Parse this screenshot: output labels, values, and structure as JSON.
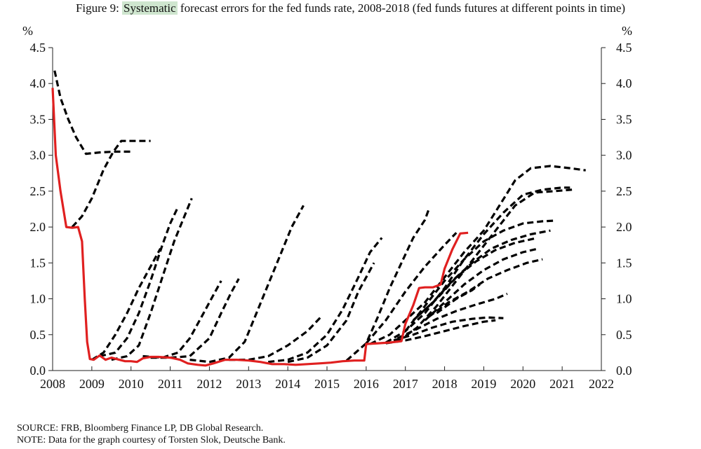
{
  "title": {
    "prefix": "Figure 9:  ",
    "highlight": "Systematic",
    "rest": " forecast errors for the fed funds rate, 2008-2018 (fed funds futures at different points in time)"
  },
  "notes": {
    "source": "SOURCE: FRB, Bloomberg Finance LP, DB Global Research.",
    "note": "NOTE: Data for the graph courtesy of Torsten Slok, Deutsche Bank."
  },
  "chart_data": {
    "type": "line",
    "title": "Systematic forecast errors for the fed funds rate, 2008-2018 (fed funds futures at different points in time)",
    "xlabel": "",
    "ylabel_left": "%",
    "ylabel_right": "%",
    "xlim": [
      2008,
      2022
    ],
    "ylim": [
      0,
      4.5
    ],
    "x_ticks": [
      2008,
      2009,
      2010,
      2011,
      2012,
      2013,
      2014,
      2015,
      2016,
      2017,
      2018,
      2019,
      2020,
      2021,
      2022
    ],
    "y_ticks": [
      "0.0",
      "0.5",
      "1.0",
      "1.5",
      "2.0",
      "2.5",
      "3.0",
      "3.5",
      "4.0",
      "4.5"
    ],
    "grid": false,
    "legend": "none",
    "colors": {
      "actual": "#e02020",
      "forecast": "#000000"
    },
    "actual": {
      "style": "solid-red",
      "points": [
        [
          2008.0,
          3.94
        ],
        [
          2008.08,
          3.0
        ],
        [
          2008.2,
          2.5
        ],
        [
          2008.35,
          2.0
        ],
        [
          2008.5,
          1.99
        ],
        [
          2008.65,
          2.0
        ],
        [
          2008.75,
          1.8
        ],
        [
          2008.82,
          1.0
        ],
        [
          2008.88,
          0.4
        ],
        [
          2008.95,
          0.16
        ],
        [
          2009.05,
          0.15
        ],
        [
          2009.2,
          0.21
        ],
        [
          2009.35,
          0.15
        ],
        [
          2009.5,
          0.18
        ],
        [
          2009.7,
          0.15
        ],
        [
          2009.85,
          0.13
        ],
        [
          2010.0,
          0.13
        ],
        [
          2010.15,
          0.12
        ],
        [
          2010.3,
          0.17
        ],
        [
          2010.5,
          0.19
        ],
        [
          2010.7,
          0.19
        ],
        [
          2011.0,
          0.18
        ],
        [
          2011.25,
          0.15
        ],
        [
          2011.45,
          0.1
        ],
        [
          2011.7,
          0.08
        ],
        [
          2011.9,
          0.07
        ],
        [
          2012.1,
          0.1
        ],
        [
          2012.4,
          0.15
        ],
        [
          2012.7,
          0.15
        ],
        [
          2013.0,
          0.14
        ],
        [
          2013.3,
          0.12
        ],
        [
          2013.6,
          0.09
        ],
        [
          2013.9,
          0.09
        ],
        [
          2014.2,
          0.08
        ],
        [
          2014.5,
          0.09
        ],
        [
          2014.8,
          0.1
        ],
        [
          2015.1,
          0.11
        ],
        [
          2015.4,
          0.13
        ],
        [
          2015.7,
          0.14
        ],
        [
          2015.95,
          0.14
        ],
        [
          2016.0,
          0.37
        ],
        [
          2016.3,
          0.38
        ],
        [
          2016.6,
          0.39
        ],
        [
          2016.9,
          0.41
        ],
        [
          2017.0,
          0.65
        ],
        [
          2017.2,
          0.91
        ],
        [
          2017.35,
          1.15
        ],
        [
          2017.5,
          1.16
        ],
        [
          2017.7,
          1.16
        ],
        [
          2017.9,
          1.2
        ],
        [
          2018.0,
          1.42
        ],
        [
          2018.2,
          1.69
        ],
        [
          2018.4,
          1.91
        ],
        [
          2018.6,
          1.92
        ]
      ]
    },
    "forecasts": [
      {
        "style": "dashed",
        "points": [
          [
            2008.05,
            4.18
          ],
          [
            2008.2,
            3.8
          ],
          [
            2008.4,
            3.5
          ],
          [
            2008.6,
            3.25
          ],
          [
            2008.85,
            3.02
          ],
          [
            2009.2,
            3.04
          ],
          [
            2009.6,
            3.05
          ],
          [
            2010.05,
            3.05
          ]
        ]
      },
      {
        "style": "dashed",
        "points": [
          [
            2008.5,
            2.0
          ],
          [
            2008.75,
            2.15
          ],
          [
            2009.0,
            2.4
          ],
          [
            2009.3,
            2.8
          ],
          [
            2009.55,
            3.05
          ],
          [
            2009.75,
            3.2
          ],
          [
            2010.2,
            3.2
          ],
          [
            2010.5,
            3.2
          ]
        ]
      },
      {
        "style": "dashed",
        "points": [
          [
            2009.0,
            0.15
          ],
          [
            2009.3,
            0.25
          ],
          [
            2009.6,
            0.5
          ],
          [
            2009.9,
            0.8
          ],
          [
            2010.2,
            1.15
          ],
          [
            2010.5,
            1.45
          ],
          [
            2010.75,
            1.7
          ]
        ]
      },
      {
        "style": "dashed",
        "points": [
          [
            2009.2,
            0.2
          ],
          [
            2009.6,
            0.25
          ],
          [
            2009.9,
            0.45
          ],
          [
            2010.2,
            0.8
          ],
          [
            2010.5,
            1.25
          ],
          [
            2010.8,
            1.75
          ],
          [
            2011.0,
            2.05
          ],
          [
            2011.2,
            2.28
          ]
        ]
      },
      {
        "style": "dashed",
        "points": [
          [
            2009.5,
            0.15
          ],
          [
            2009.9,
            0.2
          ],
          [
            2010.2,
            0.35
          ],
          [
            2010.5,
            0.8
          ],
          [
            2010.8,
            1.3
          ],
          [
            2011.1,
            1.8
          ],
          [
            2011.4,
            2.2
          ],
          [
            2011.55,
            2.4
          ]
        ]
      },
      {
        "style": "dashed",
        "points": [
          [
            2010.3,
            0.2
          ],
          [
            2010.8,
            0.18
          ],
          [
            2011.2,
            0.25
          ],
          [
            2011.5,
            0.45
          ],
          [
            2011.8,
            0.75
          ],
          [
            2012.1,
            1.05
          ],
          [
            2012.3,
            1.25
          ]
        ]
      },
      {
        "style": "dashed",
        "points": [
          [
            2010.5,
            0.18
          ],
          [
            2011.0,
            0.18
          ],
          [
            2011.5,
            0.2
          ],
          [
            2012.0,
            0.45
          ],
          [
            2012.3,
            0.8
          ],
          [
            2012.55,
            1.08
          ],
          [
            2012.75,
            1.28
          ]
        ]
      },
      {
        "style": "dashed",
        "points": [
          [
            2011.5,
            0.15
          ],
          [
            2012.0,
            0.12
          ],
          [
            2012.5,
            0.18
          ],
          [
            2012.9,
            0.4
          ],
          [
            2013.2,
            0.8
          ],
          [
            2013.5,
            1.2
          ],
          [
            2013.8,
            1.6
          ],
          [
            2014.1,
            2.0
          ],
          [
            2014.4,
            2.3
          ]
        ]
      },
      {
        "style": "dashed",
        "points": [
          [
            2012.5,
            0.15
          ],
          [
            2013.0,
            0.15
          ],
          [
            2013.5,
            0.2
          ],
          [
            2014.0,
            0.35
          ],
          [
            2014.5,
            0.55
          ],
          [
            2014.85,
            0.75
          ]
        ]
      },
      {
        "style": "dashed",
        "points": [
          [
            2013.5,
            0.12
          ],
          [
            2014.0,
            0.15
          ],
          [
            2014.5,
            0.25
          ],
          [
            2015.0,
            0.5
          ],
          [
            2015.4,
            0.85
          ],
          [
            2015.8,
            1.3
          ],
          [
            2016.1,
            1.65
          ],
          [
            2016.4,
            1.85
          ]
        ]
      },
      {
        "style": "dashed",
        "points": [
          [
            2014.0,
            0.12
          ],
          [
            2014.5,
            0.18
          ],
          [
            2015.0,
            0.35
          ],
          [
            2015.5,
            0.7
          ],
          [
            2015.8,
            1.1
          ],
          [
            2016.0,
            1.3
          ],
          [
            2016.2,
            1.5
          ]
        ]
      },
      {
        "style": "dashed",
        "points": [
          [
            2015.5,
            0.14
          ],
          [
            2016.0,
            0.38
          ],
          [
            2016.3,
            0.75
          ],
          [
            2016.6,
            1.15
          ],
          [
            2016.9,
            1.5
          ],
          [
            2017.2,
            1.85
          ],
          [
            2017.5,
            2.1
          ],
          [
            2017.6,
            2.25
          ]
        ]
      },
      {
        "style": "dashed",
        "points": [
          [
            2016.0,
            0.38
          ],
          [
            2016.5,
            0.7
          ],
          [
            2017.0,
            1.1
          ],
          [
            2017.5,
            1.45
          ],
          [
            2018.0,
            1.75
          ],
          [
            2018.3,
            1.92
          ]
        ]
      },
      {
        "style": "dashed",
        "points": [
          [
            2016.1,
            0.37
          ],
          [
            2016.6,
            0.5
          ],
          [
            2017.0,
            0.7
          ],
          [
            2017.5,
            0.95
          ],
          [
            2018.0,
            1.3
          ],
          [
            2018.5,
            1.65
          ],
          [
            2019.0,
            1.95
          ],
          [
            2019.4,
            2.3
          ],
          [
            2019.8,
            2.65
          ],
          [
            2020.2,
            2.82
          ],
          [
            2020.7,
            2.85
          ],
          [
            2021.2,
            2.82
          ],
          [
            2021.6,
            2.79
          ]
        ]
      },
      {
        "style": "dashed",
        "points": [
          [
            2016.5,
            0.39
          ],
          [
            2017.0,
            0.55
          ],
          [
            2017.5,
            0.8
          ],
          [
            2018.0,
            1.15
          ],
          [
            2018.5,
            1.55
          ],
          [
            2019.0,
            1.9
          ],
          [
            2019.5,
            2.2
          ],
          [
            2020.0,
            2.45
          ],
          [
            2020.5,
            2.52
          ],
          [
            2021.0,
            2.55
          ],
          [
            2021.2,
            2.55
          ]
        ]
      },
      {
        "style": "dashed",
        "points": [
          [
            2016.8,
            0.4
          ],
          [
            2017.3,
            0.6
          ],
          [
            2017.8,
            0.9
          ],
          [
            2018.3,
            1.25
          ],
          [
            2018.8,
            1.6
          ],
          [
            2019.3,
            1.95
          ],
          [
            2019.8,
            2.3
          ],
          [
            2020.3,
            2.48
          ],
          [
            2020.8,
            2.5
          ],
          [
            2021.25,
            2.52
          ]
        ]
      },
      {
        "style": "dashed",
        "points": [
          [
            2017.0,
            0.55
          ],
          [
            2017.5,
            0.9
          ],
          [
            2018.0,
            1.25
          ],
          [
            2018.5,
            1.55
          ],
          [
            2019.0,
            1.8
          ],
          [
            2019.5,
            1.95
          ],
          [
            2020.0,
            2.05
          ],
          [
            2020.5,
            2.08
          ],
          [
            2020.85,
            2.09
          ]
        ]
      },
      {
        "style": "dashed",
        "points": [
          [
            2017.2,
            0.7
          ],
          [
            2017.7,
            0.95
          ],
          [
            2018.2,
            1.25
          ],
          [
            2018.7,
            1.5
          ],
          [
            2019.2,
            1.7
          ],
          [
            2019.7,
            1.82
          ],
          [
            2020.2,
            1.9
          ],
          [
            2020.7,
            1.95
          ]
        ]
      },
      {
        "style": "dashed",
        "points": [
          [
            2017.3,
            0.75
          ],
          [
            2017.8,
            1.0
          ],
          [
            2018.3,
            1.3
          ],
          [
            2018.8,
            1.52
          ],
          [
            2019.3,
            1.68
          ],
          [
            2019.8,
            1.78
          ],
          [
            2020.3,
            1.84
          ]
        ]
      },
      {
        "style": "dashed",
        "points": [
          [
            2017.5,
            0.7
          ],
          [
            2018.0,
            0.95
          ],
          [
            2018.5,
            1.2
          ],
          [
            2019.0,
            1.4
          ],
          [
            2019.5,
            1.55
          ],
          [
            2020.0,
            1.65
          ],
          [
            2020.4,
            1.7
          ]
        ]
      },
      {
        "style": "dashed",
        "points": [
          [
            2017.6,
            0.75
          ],
          [
            2018.1,
            0.95
          ],
          [
            2018.6,
            1.1
          ],
          [
            2019.1,
            1.28
          ],
          [
            2019.6,
            1.4
          ],
          [
            2020.1,
            1.5
          ],
          [
            2020.5,
            1.55
          ]
        ]
      },
      {
        "style": "dashed",
        "points": [
          [
            2017.8,
            0.8
          ],
          [
            2018.3,
            1.0
          ],
          [
            2018.7,
            1.12
          ],
          [
            2018.9,
            1.2
          ]
        ]
      },
      {
        "style": "dashed",
        "points": [
          [
            2016.8,
            0.45
          ],
          [
            2017.3,
            0.58
          ],
          [
            2017.8,
            0.72
          ],
          [
            2018.3,
            0.83
          ],
          [
            2018.8,
            0.92
          ],
          [
            2019.3,
            1.0
          ],
          [
            2019.6,
            1.07
          ]
        ]
      },
      {
        "style": "dashed",
        "points": [
          [
            2016.7,
            0.42
          ],
          [
            2017.2,
            0.5
          ],
          [
            2017.7,
            0.6
          ],
          [
            2018.2,
            0.68
          ],
          [
            2018.7,
            0.72
          ],
          [
            2019.1,
            0.74
          ],
          [
            2019.5,
            0.73
          ]
        ]
      },
      {
        "style": "dashed",
        "points": [
          [
            2016.5,
            0.38
          ],
          [
            2017.0,
            0.42
          ],
          [
            2017.5,
            0.48
          ],
          [
            2018.0,
            0.55
          ],
          [
            2018.5,
            0.62
          ],
          [
            2019.0,
            0.68
          ],
          [
            2019.3,
            0.7
          ]
        ]
      }
    ]
  }
}
